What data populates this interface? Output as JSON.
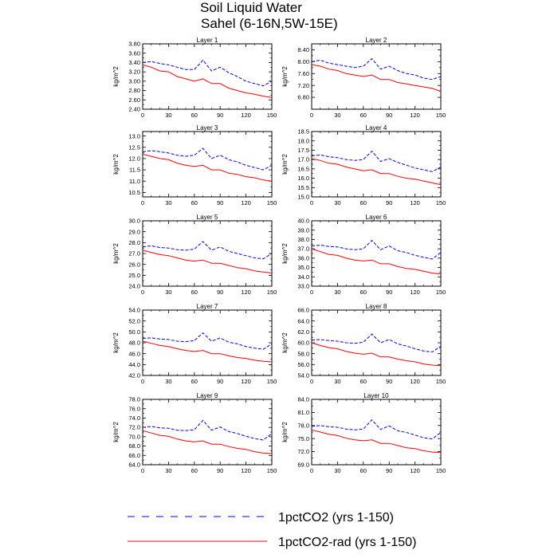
{
  "figure": {
    "title_line1": "Soil Liquid Water",
    "title_line2": "Sahel (6-16N,5W-15E)"
  },
  "legend": [
    {
      "name": "1pctCO2 (yrs 1-150)",
      "color": "#0000ff",
      "style": "dashed"
    },
    {
      "name": "1pctCO2-rad (yrs 1-150)",
      "color": "#ff0000",
      "style": "solid"
    }
  ],
  "chart_data": [
    {
      "type": "line",
      "title": "Layer 1",
      "ylabel": "kg/m^2",
      "xlim": [
        0,
        150
      ],
      "ylim": [
        2.4,
        3.8
      ],
      "xticks": [
        0,
        30,
        60,
        90,
        120,
        150
      ],
      "yticks": [
        "2.40",
        "2.60",
        "2.80",
        "3.00",
        "3.20",
        "3.40",
        "3.60",
        "3.80"
      ],
      "series": [
        {
          "name": "1pctCO2 (yrs 1-150)",
          "color": "#0000ff",
          "x": [
            0,
            10,
            20,
            30,
            40,
            50,
            60,
            70,
            80,
            90,
            100,
            110,
            120,
            130,
            140,
            150
          ],
          "values": [
            3.4,
            3.42,
            3.38,
            3.35,
            3.3,
            3.25,
            3.25,
            3.45,
            3.22,
            3.3,
            3.18,
            3.1,
            3.0,
            2.95,
            2.9,
            3.0
          ]
        },
        {
          "name": "1pctCO2-rad (yrs 1-150)",
          "color": "#ff0000",
          "x": [
            0,
            10,
            20,
            30,
            40,
            50,
            60,
            70,
            80,
            90,
            100,
            110,
            120,
            130,
            140,
            150
          ],
          "values": [
            3.35,
            3.3,
            3.22,
            3.2,
            3.1,
            3.05,
            3.0,
            3.05,
            2.95,
            2.95,
            2.85,
            2.8,
            2.75,
            2.72,
            2.68,
            2.65
          ]
        }
      ]
    },
    {
      "type": "line",
      "title": "Layer 2",
      "ylabel": "kg/m^2",
      "xlim": [
        0,
        150
      ],
      "ylim": [
        6.4,
        8.6
      ],
      "xticks": [
        0,
        30,
        60,
        90,
        120,
        150
      ],
      "yticks": [
        "6.80",
        "7.20",
        "7.60",
        "8.00",
        "8.40"
      ],
      "series": [
        {
          "name": "1pctCO2 (yrs 1-150)",
          "color": "#0000ff",
          "x": [
            0,
            10,
            20,
            30,
            40,
            50,
            60,
            70,
            80,
            90,
            100,
            110,
            120,
            130,
            140,
            150
          ],
          "values": [
            8.0,
            8.05,
            7.95,
            7.9,
            7.85,
            7.8,
            7.85,
            8.1,
            7.75,
            7.85,
            7.7,
            7.6,
            7.55,
            7.45,
            7.4,
            7.5
          ]
        },
        {
          "name": "1pctCO2-rad (yrs 1-150)",
          "color": "#ff0000",
          "x": [
            0,
            10,
            20,
            30,
            40,
            50,
            60,
            70,
            80,
            90,
            100,
            110,
            120,
            130,
            140,
            150
          ],
          "values": [
            7.9,
            7.85,
            7.75,
            7.7,
            7.6,
            7.55,
            7.5,
            7.55,
            7.4,
            7.4,
            7.3,
            7.25,
            7.2,
            7.15,
            7.1,
            7.0
          ]
        }
      ]
    },
    {
      "type": "line",
      "title": "Layer 3",
      "ylabel": "kg/m^2",
      "xlim": [
        0,
        150
      ],
      "ylim": [
        10.3,
        13.2
      ],
      "xticks": [
        0,
        30,
        60,
        90,
        120,
        150
      ],
      "yticks": [
        "10.5",
        "11.0",
        "11.5",
        "12.0",
        "12.5",
        "13.0"
      ],
      "series": [
        {
          "name": "1pctCO2 (yrs 1-150)",
          "color": "#0000ff",
          "x": [
            0,
            10,
            20,
            30,
            40,
            50,
            60,
            70,
            80,
            90,
            100,
            110,
            120,
            130,
            140,
            150
          ],
          "values": [
            12.3,
            12.35,
            12.3,
            12.25,
            12.15,
            12.1,
            12.15,
            12.45,
            12.0,
            12.15,
            11.95,
            11.85,
            11.7,
            11.6,
            11.5,
            11.7
          ]
        },
        {
          "name": "1pctCO2-rad (yrs 1-150)",
          "color": "#ff0000",
          "x": [
            0,
            10,
            20,
            30,
            40,
            50,
            60,
            70,
            80,
            90,
            100,
            110,
            120,
            130,
            140,
            150
          ],
          "values": [
            12.2,
            12.1,
            12.0,
            11.95,
            11.8,
            11.7,
            11.65,
            11.7,
            11.5,
            11.5,
            11.35,
            11.3,
            11.2,
            11.15,
            11.05,
            11.0
          ]
        }
      ]
    },
    {
      "type": "line",
      "title": "Layer 4",
      "ylabel": "kg/m^2",
      "xlim": [
        0,
        150
      ],
      "ylim": [
        15.0,
        18.5
      ],
      "xticks": [
        0,
        30,
        60,
        90,
        120,
        150
      ],
      "yticks": [
        "15.0",
        "15.5",
        "16.0",
        "16.5",
        "17.0",
        "17.5",
        "18.0",
        "18.5"
      ],
      "series": [
        {
          "name": "1pctCO2 (yrs 1-150)",
          "color": "#0000ff",
          "x": [
            0,
            10,
            20,
            30,
            40,
            50,
            60,
            70,
            80,
            90,
            100,
            110,
            120,
            130,
            140,
            150
          ],
          "values": [
            17.2,
            17.25,
            17.15,
            17.1,
            17.0,
            16.95,
            17.0,
            17.45,
            16.9,
            17.05,
            16.85,
            16.7,
            16.55,
            16.45,
            16.35,
            16.6
          ]
        },
        {
          "name": "1pctCO2-rad (yrs 1-150)",
          "color": "#ff0000",
          "x": [
            0,
            10,
            20,
            30,
            40,
            50,
            60,
            70,
            80,
            90,
            100,
            110,
            120,
            130,
            140,
            150
          ],
          "values": [
            17.05,
            16.95,
            16.8,
            16.75,
            16.6,
            16.5,
            16.4,
            16.45,
            16.25,
            16.25,
            16.1,
            16.0,
            15.95,
            15.85,
            15.75,
            15.65
          ]
        }
      ]
    },
    {
      "type": "line",
      "title": "Layer 5",
      "ylabel": "kg/m^2",
      "xlim": [
        0,
        150
      ],
      "ylim": [
        24.0,
        30.0
      ],
      "xticks": [
        0,
        30,
        60,
        90,
        120,
        150
      ],
      "yticks": [
        "24.0",
        "25.0",
        "26.0",
        "27.0",
        "28.0",
        "29.0",
        "30.0"
      ],
      "series": [
        {
          "name": "1pctCO2 (yrs 1-150)",
          "color": "#0000ff",
          "x": [
            0,
            10,
            20,
            30,
            40,
            50,
            60,
            70,
            80,
            90,
            100,
            110,
            120,
            130,
            140,
            150
          ],
          "values": [
            27.6,
            27.7,
            27.55,
            27.5,
            27.35,
            27.3,
            27.4,
            28.1,
            27.3,
            27.6,
            27.2,
            27.0,
            26.8,
            26.6,
            26.5,
            27.0
          ]
        },
        {
          "name": "1pctCO2-rad (yrs 1-150)",
          "color": "#ff0000",
          "x": [
            0,
            10,
            20,
            30,
            40,
            50,
            60,
            70,
            80,
            90,
            100,
            110,
            120,
            130,
            140,
            150
          ],
          "values": [
            27.3,
            27.1,
            26.9,
            26.8,
            26.6,
            26.4,
            26.3,
            26.4,
            26.1,
            26.1,
            25.9,
            25.7,
            25.6,
            25.4,
            25.3,
            25.2
          ]
        }
      ]
    },
    {
      "type": "line",
      "title": "Layer 6",
      "ylabel": "kg/m^2",
      "xlim": [
        0,
        150
      ],
      "ylim": [
        33.0,
        40.0
      ],
      "xticks": [
        0,
        30,
        60,
        90,
        120,
        150
      ],
      "yticks": [
        "33.0",
        "34.0",
        "35.0",
        "36.0",
        "37.0",
        "38.0",
        "39.0",
        "40.0"
      ],
      "series": [
        {
          "name": "1pctCO2 (yrs 1-150)",
          "color": "#0000ff",
          "x": [
            0,
            10,
            20,
            30,
            40,
            50,
            60,
            70,
            80,
            90,
            100,
            110,
            120,
            130,
            140,
            150
          ],
          "values": [
            37.3,
            37.4,
            37.25,
            37.2,
            37.0,
            36.9,
            37.0,
            37.9,
            36.9,
            37.3,
            36.8,
            36.6,
            36.3,
            36.1,
            35.9,
            36.6
          ]
        },
        {
          "name": "1pctCO2-rad (yrs 1-150)",
          "color": "#ff0000",
          "x": [
            0,
            10,
            20,
            30,
            40,
            50,
            60,
            70,
            80,
            90,
            100,
            110,
            120,
            130,
            140,
            150
          ],
          "values": [
            37.0,
            36.7,
            36.4,
            36.3,
            36.0,
            35.8,
            35.7,
            35.8,
            35.4,
            35.4,
            35.1,
            34.9,
            34.8,
            34.6,
            34.4,
            34.3
          ]
        }
      ]
    },
    {
      "type": "line",
      "title": "Layer 7",
      "ylabel": "kg/m^2",
      "xlim": [
        0,
        150
      ],
      "ylim": [
        42.0,
        54.0
      ],
      "xticks": [
        0,
        30,
        60,
        90,
        120,
        150
      ],
      "yticks": [
        "42.0",
        "44.0",
        "46.0",
        "48.0",
        "50.0",
        "52.0",
        "54.0"
      ],
      "series": [
        {
          "name": "1pctCO2 (yrs 1-150)",
          "color": "#0000ff",
          "x": [
            0,
            10,
            20,
            30,
            40,
            50,
            60,
            70,
            80,
            90,
            100,
            110,
            120,
            130,
            140,
            150
          ],
          "values": [
            48.8,
            48.9,
            48.7,
            48.6,
            48.3,
            48.2,
            48.4,
            49.8,
            48.3,
            48.9,
            48.1,
            47.8,
            47.3,
            47.0,
            46.8,
            47.8
          ]
        },
        {
          "name": "1pctCO2-rad (yrs 1-150)",
          "color": "#ff0000",
          "x": [
            0,
            10,
            20,
            30,
            40,
            50,
            60,
            70,
            80,
            90,
            100,
            110,
            120,
            130,
            140,
            150
          ],
          "values": [
            48.3,
            47.9,
            47.5,
            47.3,
            46.9,
            46.6,
            46.4,
            46.6,
            46.0,
            46.0,
            45.6,
            45.3,
            45.1,
            44.8,
            44.6,
            44.5
          ]
        }
      ]
    },
    {
      "type": "line",
      "title": "Layer 8",
      "ylabel": "kg/m^2",
      "xlim": [
        0,
        150
      ],
      "ylim": [
        54.0,
        66.0
      ],
      "xticks": [
        0,
        30,
        60,
        90,
        120,
        150
      ],
      "yticks": [
        "54.0",
        "56.0",
        "58.0",
        "60.0",
        "62.0",
        "64.0",
        "66.0"
      ],
      "series": [
        {
          "name": "1pctCO2 (yrs 1-150)",
          "color": "#0000ff",
          "x": [
            0,
            10,
            20,
            30,
            40,
            50,
            60,
            70,
            80,
            90,
            100,
            110,
            120,
            130,
            140,
            150
          ],
          "values": [
            60.5,
            60.6,
            60.4,
            60.3,
            60.0,
            59.9,
            60.1,
            61.6,
            60.0,
            60.6,
            59.8,
            59.4,
            58.9,
            58.5,
            58.3,
            59.4
          ]
        },
        {
          "name": "1pctCO2-rad (yrs 1-150)",
          "color": "#ff0000",
          "x": [
            0,
            10,
            20,
            30,
            40,
            50,
            60,
            70,
            80,
            90,
            100,
            110,
            120,
            130,
            140,
            150
          ],
          "values": [
            60.0,
            59.5,
            59.1,
            58.9,
            58.4,
            58.1,
            57.9,
            58.1,
            57.4,
            57.4,
            57.0,
            56.7,
            56.5,
            56.1,
            55.9,
            55.8
          ]
        }
      ]
    },
    {
      "type": "line",
      "title": "Layer 9",
      "ylabel": "kg/m^2",
      "xlim": [
        0,
        150
      ],
      "ylim": [
        64.0,
        78.0
      ],
      "xticks": [
        0,
        30,
        60,
        90,
        120,
        150
      ],
      "yticks": [
        "64.0",
        "66.0",
        "68.0",
        "70.0",
        "72.0",
        "74.0",
        "76.0",
        "78.0"
      ],
      "series": [
        {
          "name": "1pctCO2 (yrs 1-150)",
          "color": "#0000ff",
          "x": [
            0,
            10,
            20,
            30,
            40,
            50,
            60,
            70,
            80,
            90,
            100,
            110,
            120,
            130,
            140,
            150
          ],
          "values": [
            72.0,
            72.2,
            71.9,
            71.8,
            71.4,
            71.3,
            71.5,
            73.5,
            71.4,
            72.1,
            71.1,
            70.7,
            70.1,
            69.6,
            69.3,
            70.7
          ]
        },
        {
          "name": "1pctCO2-rad (yrs 1-150)",
          "color": "#ff0000",
          "x": [
            0,
            10,
            20,
            30,
            40,
            50,
            60,
            70,
            80,
            90,
            100,
            110,
            120,
            130,
            140,
            150
          ],
          "values": [
            71.3,
            70.8,
            70.3,
            70.1,
            69.5,
            69.1,
            68.9,
            69.1,
            68.4,
            68.4,
            67.9,
            67.5,
            67.3,
            66.8,
            66.5,
            66.4
          ]
        }
      ]
    },
    {
      "type": "line",
      "title": "Layer 10",
      "ylabel": "kg/m^2",
      "xlim": [
        0,
        150
      ],
      "ylim": [
        69.0,
        84.0
      ],
      "xticks": [
        0,
        30,
        60,
        90,
        120,
        150
      ],
      "yticks": [
        "69.0",
        "72.0",
        "75.0",
        "78.0",
        "81.0",
        "84.0"
      ],
      "series": [
        {
          "name": "1pctCO2 (yrs 1-150)",
          "color": "#0000ff",
          "x": [
            0,
            10,
            20,
            30,
            40,
            50,
            60,
            70,
            80,
            90,
            100,
            110,
            120,
            130,
            140,
            150
          ],
          "values": [
            77.8,
            78.0,
            77.7,
            77.6,
            77.2,
            77.0,
            77.2,
            79.3,
            77.1,
            77.9,
            76.8,
            76.4,
            75.8,
            75.2,
            74.9,
            76.4
          ]
        },
        {
          "name": "1pctCO2-rad (yrs 1-150)",
          "color": "#ff0000",
          "x": [
            0,
            10,
            20,
            30,
            40,
            50,
            60,
            70,
            80,
            90,
            100,
            110,
            120,
            130,
            140,
            150
          ],
          "values": [
            77.0,
            76.5,
            76.0,
            75.7,
            75.1,
            74.7,
            74.5,
            74.7,
            73.9,
            73.9,
            73.4,
            72.9,
            72.7,
            72.2,
            71.9,
            71.8
          ]
        }
      ]
    }
  ]
}
